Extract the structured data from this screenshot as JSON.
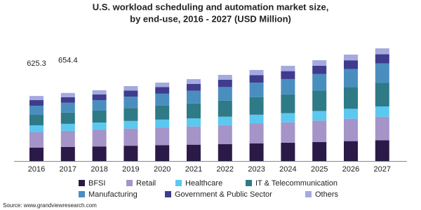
{
  "chart_data": {
    "type": "stacked-bar",
    "title": "U.S. workload scheduling and automation market size,",
    "subtitle": "by end-use, 2016 - 2027 (USD Million)",
    "source": "Source: www.grandviewresearch.com",
    "categories": [
      "2016",
      "2017",
      "2018",
      "2019",
      "2020",
      "2021",
      "2022",
      "2023",
      "2024",
      "2025",
      "2026",
      "2027"
    ],
    "total_labels": [
      625.3,
      654.4,
      null,
      null,
      null,
      null,
      null,
      null,
      null,
      null,
      null,
      null
    ],
    "series": [
      {
        "name": "BFSI",
        "color": "#2b1a48",
        "values": [
          128,
          134.9,
          140,
          147,
          152,
          157,
          163,
          170,
          175,
          183,
          191,
          200
        ]
      },
      {
        "name": "Retail",
        "color": "#a594c8",
        "values": [
          148,
          155,
          160,
          165,
          170,
          175,
          182,
          190,
          197,
          206,
          215,
          225
        ]
      },
      {
        "name": "Healthcare",
        "color": "#5bc8f0",
        "values": [
          67,
          67.5,
          70,
          73,
          76,
          78,
          81,
          85,
          88,
          92,
          96,
          100
        ]
      },
      {
        "name": "IT & Telecommunication",
        "color": "#2e7a86",
        "values": [
          101,
          108,
          115,
          125,
          134,
          143,
          155,
          168,
          180,
          195,
          210,
          228
        ]
      },
      {
        "name": "Manufacturing",
        "color": "#4a8ec0",
        "values": [
          87.3,
          94.5,
          100,
          108,
          115,
          122,
          130,
          140,
          148,
          160,
          172,
          185
        ]
      },
      {
        "name": "Government & Public Sector",
        "color": "#3f3c8e",
        "values": [
          54,
          54,
          55,
          60,
          63,
          67,
          70,
          73,
          76,
          80,
          84,
          88
        ]
      },
      {
        "name": "Others",
        "color": "#a4a9e0",
        "values": [
          40,
          40.5,
          40,
          42,
          44,
          45,
          47,
          49,
          51,
          53,
          55,
          57
        ]
      }
    ]
  }
}
